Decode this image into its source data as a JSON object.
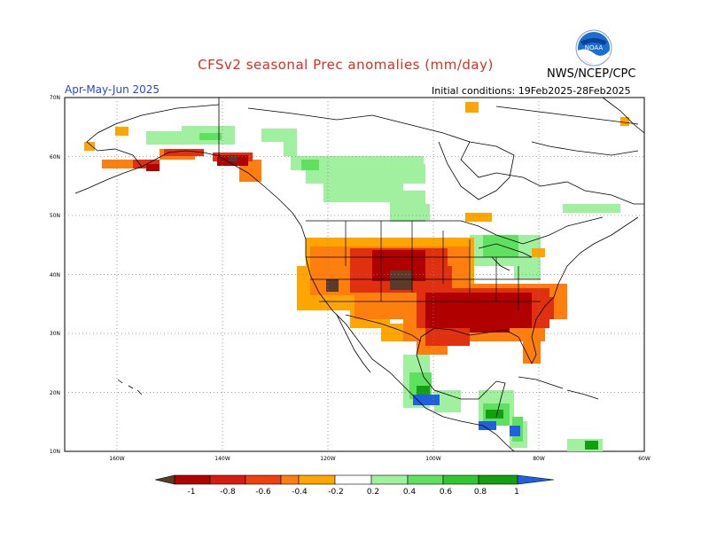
{
  "header": {
    "title": "CFSv2 seasonal Prec anomalies (mm/day)",
    "season": "Apr-May-Jun 2025",
    "initial_conditions": "Initial conditions: 19Feb2025-28Feb2025",
    "agency": "NWS/NCEP/CPC",
    "logo_text": "NOAA"
  },
  "map": {
    "lat_labels": [
      "70N",
      "60N",
      "50N",
      "40N",
      "30N",
      "20N",
      "10N"
    ],
    "lon_labels": [
      "160W",
      "140W",
      "120W",
      "100W",
      "80W",
      "60W"
    ],
    "lat_range": [
      10,
      70
    ],
    "lon_range": [
      -190,
      -60
    ]
  },
  "colorbar": {
    "labels": [
      "-1",
      "-0.8",
      "-0.6",
      "-0.4",
      "-0.2",
      "0.2",
      "0.4",
      "0.6",
      "0.8",
      "1"
    ],
    "colors": [
      "#5a3a2a",
      "#b00000",
      "#d81a10",
      "#f04010",
      "#ff7f0e",
      "#ffa500",
      "#ffffff",
      "#a0f0a0",
      "#60e060",
      "#30c830",
      "#10a010",
      "#2060e0"
    ]
  },
  "colors": {
    "dry_strong": "#b00000",
    "dry_mid": "#e03010",
    "dry_light": "#ff7f0e",
    "dry_faint": "#ffa500",
    "dry_extreme": "#5a3a2a",
    "wet_light": "#a0f0a0",
    "wet_mid": "#60e060",
    "wet_strong": "#10a010",
    "wet_extreme": "#2060e0"
  }
}
